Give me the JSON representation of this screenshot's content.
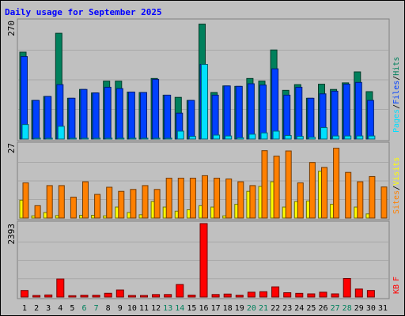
{
  "title": "Daily usage for September 2025",
  "colors": {
    "title": "#0000ff",
    "hits": "#00805c",
    "files": "#0040ff",
    "pages": "#00e0ff",
    "sites": "#ff8000",
    "visits": "#ffff00",
    "kbytes": "#ff0000",
    "weekday_label": "#000000",
    "weekend_label": "#00805c",
    "panel_bg": "#c0c0c0"
  },
  "chart_data": [
    {
      "type": "bar",
      "panel": "hits-files-pages",
      "y_max_label": "270",
      "ylim": [
        0,
        270
      ],
      "right_label": {
        "pages": "Pages",
        "files": "Files",
        "hits": "Hits",
        "sep": "/"
      },
      "categories": [
        "1",
        "2",
        "3",
        "4",
        "5",
        "6",
        "7",
        "8",
        "9",
        "10",
        "11",
        "12",
        "13",
        "14",
        "15",
        "16",
        "17",
        "18",
        "19",
        "20",
        "21",
        "22",
        "23",
        "24",
        "25",
        "26",
        "27",
        "28",
        "29",
        "30",
        "31"
      ],
      "weekend_days": [
        "6",
        "7",
        "13",
        "14",
        "20",
        "21",
        "27",
        "28"
      ],
      "series": [
        {
          "name": "Hits",
          "values": [
            198,
            88,
            97,
            241,
            93,
            113,
            105,
            132,
            132,
            107,
            106,
            138,
            100,
            95,
            88,
            262,
            106,
            121,
            120,
            138,
            132,
            203,
            111,
            124,
            93,
            125,
            113,
            128,
            153,
            108,
            0
          ]
        },
        {
          "name": "Files",
          "values": [
            188,
            88,
            97,
            124,
            93,
            113,
            105,
            118,
            115,
            107,
            106,
            136,
            100,
            59,
            88,
            170,
            100,
            121,
            120,
            126,
            123,
            160,
            100,
            118,
            93,
            103,
            109,
            125,
            129,
            88,
            0
          ]
        },
        {
          "name": "Pages",
          "values": [
            33,
            2,
            2,
            29,
            2,
            2,
            2,
            2,
            2,
            2,
            2,
            2,
            2,
            18,
            6,
            170,
            9,
            7,
            3,
            11,
            14,
            18,
            8,
            6,
            4,
            26,
            7,
            7,
            7,
            7,
            0
          ]
        }
      ]
    },
    {
      "type": "bar",
      "panel": "sites-visits",
      "y_max_label": "27",
      "ylim": [
        0,
        27
      ],
      "right_label": {
        "sites": "Sites",
        "visits": "Visits",
        "sep": "/"
      },
      "series": [
        {
          "name": "Visits",
          "values": [
            6.5,
            0.8,
            2,
            0.9,
            0,
            1,
            1,
            0.8,
            4,
            2,
            1.2,
            6,
            4,
            2.5,
            3,
            4.5,
            4,
            0.8,
            5,
            9.7,
            11.5,
            13.2,
            4,
            6,
            6.2,
            17,
            5,
            0,
            4,
            1.5,
            0
          ]
        },
        {
          "name": "Sites",
          "values": [
            12.8,
            4.5,
            11.8,
            11.8,
            7.6,
            13.2,
            8.6,
            11.2,
            9.7,
            10.4,
            11.8,
            10.4,
            14.5,
            14.5,
            14.5,
            15.4,
            14.5,
            14.2,
            13.2,
            11.8,
            24.5,
            22.5,
            24.4,
            12.8,
            20.2,
            18.4,
            25.4,
            16.6,
            13.2,
            15.1,
            11.3
          ]
        }
      ]
    },
    {
      "type": "bar",
      "panel": "kbytes",
      "y_max_label": "2393",
      "ylim": [
        0,
        2393
      ],
      "right_label": {
        "kb": "KB",
        "f": "F"
      },
      "series": [
        {
          "name": "KBytes",
          "values": [
            213,
            51,
            69,
            589,
            44,
            58,
            58,
            122,
            230,
            51,
            51,
            81,
            82,
            408,
            63,
            2393,
            82,
            97,
            59,
            158,
            174,
            332,
            141,
            120,
            103,
            158,
            103,
            605,
            261,
            214,
            0
          ]
        }
      ]
    }
  ]
}
